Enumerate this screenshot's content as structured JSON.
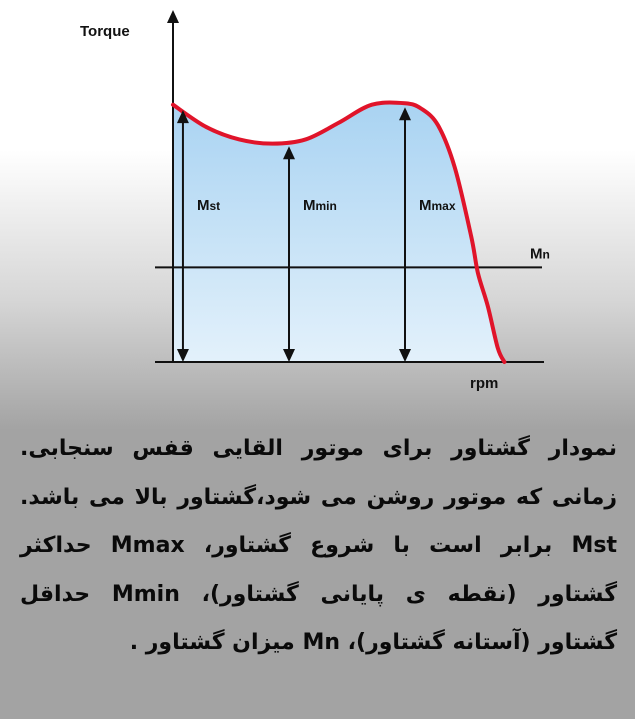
{
  "chart_data": {
    "type": "line",
    "ylabel": "Torque",
    "xlabel": "rpm",
    "curve": {
      "name": "torque-speed-curve",
      "color": "#e0142a",
      "fill": "#bfe0f6",
      "x": [
        0,
        0.1,
        0.2,
        0.3,
        0.4,
        0.5,
        0.6,
        0.7,
        0.75,
        0.8,
        0.85,
        0.9,
        0.92,
        0.95,
        0.98,
        1.0
      ],
      "y": [
        0.925,
        0.845,
        0.8,
        0.785,
        0.8,
        0.86,
        0.925,
        0.93,
        0.91,
        0.85,
        0.7,
        0.45,
        0.32,
        0.2,
        0.05,
        0.0
      ]
    },
    "markers": [
      {
        "label_main": "M",
        "label_sub": "st",
        "x": 0.03,
        "y": 0.92
      },
      {
        "label_main": "M",
        "label_sub": "min",
        "x": 0.35,
        "y": 0.79
      },
      {
        "label_main": "M",
        "label_sub": "max",
        "x": 0.7,
        "y": 0.93
      }
    ],
    "nominal_line": {
      "label_main": "M",
      "label_sub": "n",
      "y": 0.34
    },
    "ylim": [
      0,
      1.1
    ],
    "xlim": [
      0,
      1.05
    ],
    "grid": false,
    "axis_color": "#111111"
  },
  "caption": "نمودار گشتاور برای موتور القایی قفس سنجابی. زمانی که موتور روشن می شود،گشتاور بالا می باشد. Mst برابر است با شروع گشتاور، Mmax حداکثر گشتاور (نقطه ی پایانی گشتاور)، Mmin حداقل گشتاور (آستانه گشتاور)، Mn میزان گشتاور ."
}
